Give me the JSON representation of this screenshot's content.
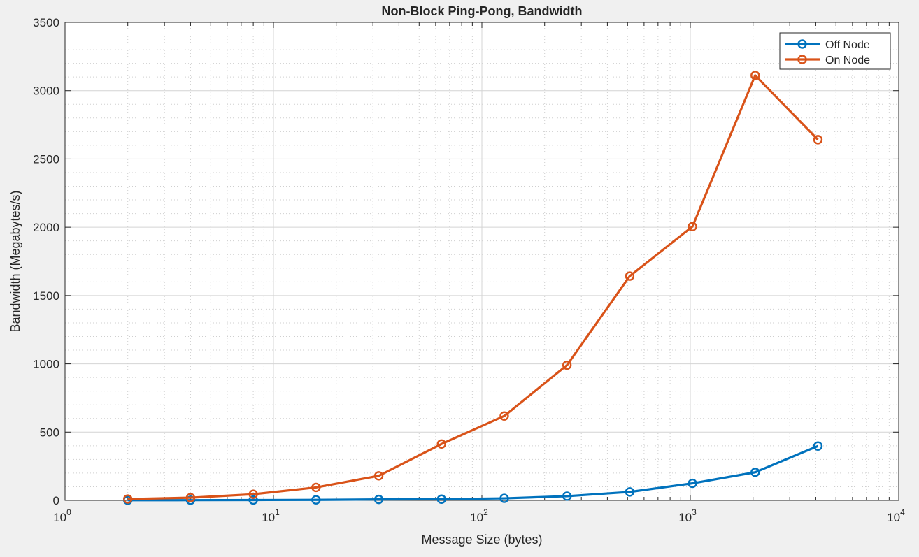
{
  "chart_data": {
    "type": "line",
    "title": "Non-Block Ping-Pong, Bandwidth",
    "xlabel": "Message Size (bytes)",
    "ylabel": "Bandwidth (Megabytes/s)",
    "x_scale": "log",
    "xlim": [
      1,
      10000
    ],
    "ylim": [
      0,
      3500
    ],
    "x_ticks": [
      {
        "base": "10",
        "exp": "0"
      },
      {
        "base": "10",
        "exp": "1"
      },
      {
        "base": "10",
        "exp": "2"
      },
      {
        "base": "10",
        "exp": "3"
      },
      {
        "base": "10",
        "exp": "4"
      }
    ],
    "y_ticks": [
      "0",
      "500",
      "1000",
      "1500",
      "2000",
      "2500",
      "3000",
      "3500"
    ],
    "grid": true,
    "minor_grid": true,
    "legend_position": "top-right",
    "x": [
      2,
      4,
      8,
      16,
      32,
      64,
      128,
      256,
      512,
      1024,
      2048,
      4096
    ],
    "series": [
      {
        "name": "Off Node",
        "color": "#0072bd",
        "values": [
          1,
          1.5,
          2.5,
          4,
          7,
          9,
          15,
          31,
          62,
          125,
          206,
          398
        ]
      },
      {
        "name": "On Node",
        "color": "#d95319",
        "values": [
          10,
          20,
          45,
          95,
          180,
          413,
          618,
          990,
          1642,
          2005,
          3112,
          2641
        ]
      }
    ]
  }
}
